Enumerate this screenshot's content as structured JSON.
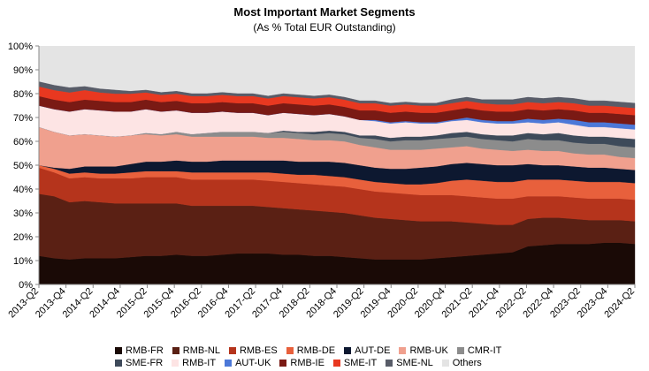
{
  "chart_data": {
    "type": "area",
    "stacked": true,
    "title": "Most Important Market Segments",
    "subtitle": "(As % Total EUR Outstanding)",
    "xlabel": "",
    "ylabel": "",
    "ylim": [
      0,
      100
    ],
    "y_ticks": [
      "0%",
      "10%",
      "20%",
      "30%",
      "40%",
      "50%",
      "60%",
      "70%",
      "80%",
      "90%",
      "100%"
    ],
    "x_tick_labels": [
      "2013-Q2",
      "2013-Q4",
      "2014-Q2",
      "2014-Q4",
      "2015-Q2",
      "2015-Q4",
      "2016-Q2",
      "2016-Q4",
      "2017-Q2",
      "2017-Q4",
      "2018-Q2",
      "2018-Q4",
      "2019-Q2",
      "2019-Q4",
      "2020-Q2",
      "2020-Q4",
      "2021-Q2",
      "2021-Q4",
      "2022-Q2",
      "2022-Q4",
      "2023-Q2",
      "2023-Q4",
      "2024-Q2"
    ],
    "series": [
      {
        "name": "RMB-FR",
        "color": "#1a0a06",
        "values": [
          12,
          11,
          10.5,
          11,
          11,
          11,
          11.5,
          12,
          12,
          12.5,
          12,
          12,
          12.5,
          13,
          13,
          13,
          12.5,
          12.5,
          12,
          12,
          11.5,
          11,
          10.5,
          10.5,
          10.5,
          10.5,
          11,
          11.5,
          12,
          12.5,
          13,
          13.5,
          16,
          16.5,
          17,
          17,
          17,
          17.5,
          17.5,
          17
        ]
      },
      {
        "name": "RMB-NL",
        "color": "#5a2014",
        "values": [
          26,
          26,
          24,
          24,
          23.5,
          23,
          22.5,
          22,
          22,
          21.5,
          21,
          21,
          20.5,
          20,
          20,
          19.5,
          19.5,
          19,
          19,
          18.5,
          18.5,
          18,
          17.5,
          17,
          16.5,
          16,
          15.5,
          15,
          14,
          13,
          12,
          11.5,
          11.5,
          11.5,
          11,
          10.5,
          10,
          9.5,
          9.5,
          9.5
        ]
      },
      {
        "name": "RMB-ES",
        "color": "#b5341c",
        "values": [
          11,
          10,
          10,
          10,
          10,
          10.5,
          10.5,
          11,
          11,
          11,
          11,
          11,
          11,
          11,
          11,
          11,
          11,
          11,
          11,
          11,
          11,
          11,
          11,
          11,
          11,
          11,
          11,
          11,
          11,
          11,
          11,
          11,
          9.5,
          9,
          9,
          9,
          9,
          9,
          9,
          9
        ]
      },
      {
        "name": "RMB-DE",
        "color": "#e8603c",
        "values": [
          1,
          1.5,
          2,
          2,
          2,
          2,
          2.5,
          2.5,
          2.5,
          2.5,
          3,
          3,
          3,
          3,
          3,
          3.5,
          3.5,
          3.5,
          4,
          4,
          4,
          4,
          4,
          4,
          4,
          4.5,
          5,
          6,
          7,
          7,
          7,
          7,
          7,
          7,
          7,
          7,
          7,
          7,
          7,
          7
        ]
      },
      {
        "name": "AUT-DE",
        "color": "#0d1830",
        "values": [
          0,
          0.5,
          2,
          2.5,
          3,
          3,
          3.5,
          4,
          4,
          4.5,
          4.5,
          4.5,
          5,
          5,
          5,
          5,
          5.5,
          5.5,
          5.5,
          6,
          6,
          6,
          6,
          6,
          6.5,
          7,
          7,
          7,
          7,
          7,
          7,
          7,
          6.5,
          6,
          6,
          6,
          6,
          6,
          5.5,
          5.5
        ]
      },
      {
        "name": "RMB-UK",
        "color": "#f0a08e",
        "values": [
          16,
          15,
          14,
          13.5,
          13,
          12.5,
          12,
          11.5,
          11,
          11,
          10.5,
          10.5,
          10,
          10,
          10,
          9.5,
          9.5,
          9.5,
          9,
          9,
          9,
          8.5,
          8.5,
          8,
          8,
          7.5,
          7.5,
          7,
          7,
          6.5,
          6.5,
          6,
          6,
          6,
          6,
          5.5,
          5.5,
          5.5,
          5,
          5
        ]
      },
      {
        "name": "CMR-IT",
        "color": "#8c8c8c",
        "values": [
          0,
          0,
          0,
          0,
          0,
          0,
          0,
          0.5,
          0.5,
          1,
          1,
          1.5,
          2,
          2,
          2,
          2,
          2.5,
          2.5,
          2.5,
          3,
          3,
          3,
          3.5,
          3.5,
          4,
          4,
          4,
          4,
          4,
          4,
          4,
          4,
          4.5,
          4.5,
          4.5,
          4.5,
          4.5,
          4.5,
          4.5,
          4.5
        ]
      },
      {
        "name": "SME-FR",
        "color": "#3e4a5a",
        "values": [
          0,
          0,
          0,
          0,
          0,
          0,
          0,
          0,
          0,
          0,
          0,
          0,
          0,
          0,
          0,
          0,
          0.5,
          0.5,
          1,
          1,
          1,
          1,
          1.5,
          1.5,
          1.5,
          1.5,
          1.5,
          2,
          2,
          2,
          2,
          2.5,
          2.5,
          2.5,
          3,
          3,
          3,
          3,
          3.5,
          3.5
        ]
      },
      {
        "name": "RMB-IT",
        "color": "#fde4e4",
        "values": [
          9,
          9.5,
          10,
          10.5,
          10.5,
          10.5,
          10,
          10,
          9.5,
          9,
          9,
          8.5,
          8.5,
          8,
          8,
          7.5,
          7.5,
          7.5,
          7,
          7,
          6.5,
          6.5,
          6,
          6,
          6,
          5.5,
          5,
          5,
          5,
          5,
          5,
          5,
          4.5,
          4.5,
          4.5,
          4.5,
          4,
          4,
          4,
          4
        ]
      },
      {
        "name": "AUT-UK",
        "color": "#4c78d8",
        "values": [
          0,
          0,
          0,
          0,
          0,
          0,
          0,
          0,
          0,
          0,
          0,
          0,
          0,
          0,
          0,
          0,
          0,
          0,
          0,
          0,
          0,
          0,
          0.5,
          0.5,
          0.5,
          0.5,
          0.5,
          0.5,
          1,
          1,
          1,
          1,
          1.5,
          1.5,
          1.5,
          2,
          2,
          2,
          2,
          2
        ]
      },
      {
        "name": "RMB-IE",
        "color": "#7a1a14",
        "values": [
          4,
          4,
          4,
          4,
          4,
          4,
          4,
          4,
          4,
          4,
          4,
          4,
          4,
          4,
          4,
          4,
          4,
          4,
          4,
          4,
          4,
          4,
          4,
          4,
          4,
          4,
          4,
          4,
          4,
          4,
          4,
          4,
          4,
          4,
          4,
          4,
          4,
          4,
          4,
          4
        ]
      },
      {
        "name": "SME-IT",
        "color": "#e83820",
        "values": [
          4,
          4,
          4,
          4,
          3.5,
          3.5,
          3.5,
          3,
          3,
          3,
          3,
          3,
          3,
          3,
          3,
          3,
          3,
          3,
          3,
          3,
          3,
          3,
          3,
          3,
          3,
          3,
          3,
          3,
          3,
          3,
          3,
          3,
          3,
          3,
          3,
          3,
          3,
          3,
          3,
          3
        ]
      },
      {
        "name": "SME-NL",
        "color": "#585c68",
        "values": [
          2,
          2,
          2,
          1.5,
          1.5,
          1.5,
          1,
          1,
          1,
          1,
          1,
          1,
          1,
          1,
          1,
          1,
          1,
          1,
          1,
          1,
          1,
          1,
          1,
          1,
          1,
          1,
          1,
          1.5,
          1.5,
          1.5,
          2,
          2,
          2,
          2,
          2,
          2,
          2,
          2,
          2,
          2
        ]
      }
    ],
    "others": {
      "name": "Others",
      "color": "#e4e4e4",
      "note": "remainder to 100%"
    },
    "legend_position": "bottom",
    "legend_rows": [
      [
        "RMB-FR",
        "RMB-NL",
        "RMB-ES",
        "RMB-DE",
        "AUT-DE",
        "RMB-UK",
        "CMR-IT"
      ],
      [
        "SME-FR",
        "RMB-IT",
        "AUT-UK",
        "RMB-IE",
        "SME-IT",
        "SME-NL",
        "Others"
      ]
    ]
  }
}
